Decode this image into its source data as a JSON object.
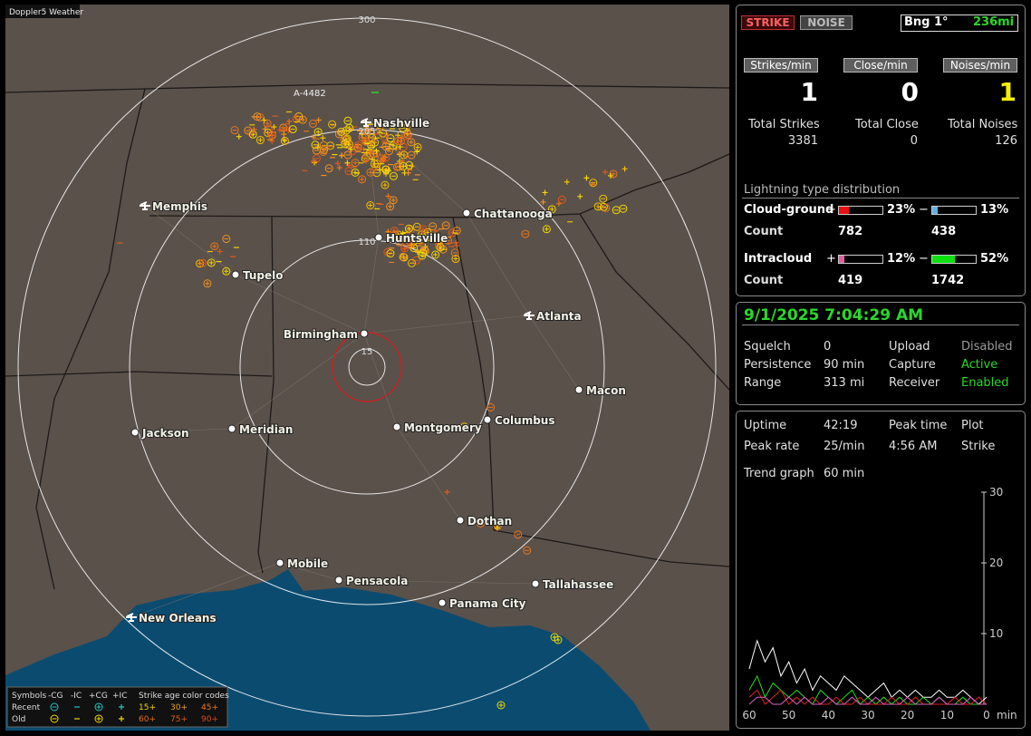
{
  "app_title": "Doppler5 Weather",
  "map": {
    "ring_labels": [
      "300",
      "205",
      "110",
      "15"
    ],
    "marker": "A-4482",
    "cities": [
      "Nashville",
      "Memphis",
      "Chattanooga",
      "Huntsville",
      "Tupelo",
      "Atlanta",
      "Birmingham",
      "Macon",
      "Jackson",
      "Meridian",
      "Montgomery",
      "Columbus",
      "Dothan",
      "Mobile",
      "Pensacola",
      "Tallahassee",
      "Panama City",
      "New Orleans"
    ]
  },
  "legend": {
    "symbols_label": "Symbols",
    "types": [
      "-CG",
      "-IC",
      "+CG",
      "+IC"
    ],
    "age_title": "Strike age color codes",
    "rows": [
      {
        "label": "Recent",
        "ages": [
          "15+",
          "30+",
          "45+"
        ]
      },
      {
        "label": "Old",
        "ages": [
          "60+",
          "75+",
          "90+"
        ]
      }
    ]
  },
  "panel": {
    "tabs": [
      "STRIKE",
      "NOISE"
    ],
    "bearing": "Bng 1°",
    "range": "236mi",
    "rates": [
      {
        "label": "Strikes/min",
        "value": 1
      },
      {
        "label": "Close/min",
        "value": 0
      },
      {
        "label": "Noises/min",
        "value": 1
      }
    ],
    "totals": [
      {
        "label": "Total Strikes",
        "value": 3381
      },
      {
        "label": "Total Close",
        "value": 0
      },
      {
        "label": "Total Noises",
        "value": 126
      }
    ],
    "distribution": {
      "title": "Lightning type distribution",
      "plus": "+",
      "minus": "−",
      "count_label": "Count",
      "rows": [
        {
          "label": "Cloud-ground",
          "pos": {
            "value": 23,
            "label": "23%"
          },
          "neg": {
            "value": 13,
            "label": "13%"
          },
          "pos_count": 782,
          "neg_count": 438
        },
        {
          "label": "Intracloud",
          "pos": {
            "value": 12,
            "label": "12%"
          },
          "neg": {
            "value": 52,
            "label": "52%"
          },
          "pos_count": 419,
          "neg_count": 1742
        }
      ]
    },
    "datetime": "9/1/2025 7:04:29 AM",
    "settings": [
      [
        "Squelch",
        "0",
        "Upload",
        "Disabled"
      ],
      [
        "Persistence",
        "90 min",
        "Capture",
        "Active"
      ],
      [
        "Range",
        "313 mi",
        "Receiver",
        "Enabled"
      ]
    ],
    "stats": [
      [
        "Uptime",
        "42:19",
        "Peak time",
        "Plot"
      ],
      [
        "Peak rate",
        "25/min",
        "4:56 AM",
        "Strike"
      ]
    ],
    "trend": [
      "Trend graph",
      "60 min"
    ]
  },
  "chart_data": {
    "type": "line",
    "xlabel": "min",
    "x": [
      60,
      58,
      56,
      54,
      52,
      50,
      48,
      46,
      44,
      42,
      40,
      38,
      36,
      34,
      32,
      30,
      28,
      26,
      24,
      22,
      20,
      18,
      16,
      14,
      12,
      10,
      8,
      6,
      4,
      2,
      0
    ],
    "xlim": [
      60,
      0
    ],
    "xticks": [
      60,
      50,
      40,
      30,
      20,
      10,
      0
    ],
    "ylim": [
      0,
      30
    ],
    "yticks": [
      10,
      20,
      30
    ],
    "series": [
      {
        "color": "#ffffff",
        "values": [
          5,
          9,
          6,
          8,
          4,
          6,
          3,
          5,
          2,
          4,
          3,
          2,
          4,
          3,
          2,
          1,
          2,
          3,
          1,
          2,
          1,
          2,
          1,
          1,
          2,
          1,
          1,
          2,
          1,
          0,
          1
        ]
      },
      {
        "color": "#22dd22",
        "values": [
          2,
          4,
          1,
          3,
          2,
          1,
          2,
          1,
          0,
          2,
          1,
          0,
          1,
          2,
          0,
          1,
          0,
          1,
          0,
          1,
          0,
          0,
          1,
          0,
          1,
          0,
          0,
          1,
          0,
          0,
          0
        ]
      },
      {
        "color": "#e02020",
        "values": [
          1,
          2,
          0,
          1,
          2,
          0,
          1,
          0,
          1,
          0,
          0,
          1,
          0,
          0,
          1,
          0,
          0,
          0,
          1,
          0,
          0,
          1,
          0,
          0,
          0,
          0,
          1,
          0,
          0,
          1,
          0
        ]
      },
      {
        "color": "#e060c0",
        "values": [
          0,
          1,
          1,
          0,
          0,
          1,
          0,
          1,
          0,
          0,
          1,
          0,
          0,
          1,
          0,
          0,
          1,
          0,
          0,
          0,
          1,
          0,
          0,
          0,
          1,
          0,
          0,
          0,
          1,
          0,
          0
        ]
      }
    ]
  }
}
